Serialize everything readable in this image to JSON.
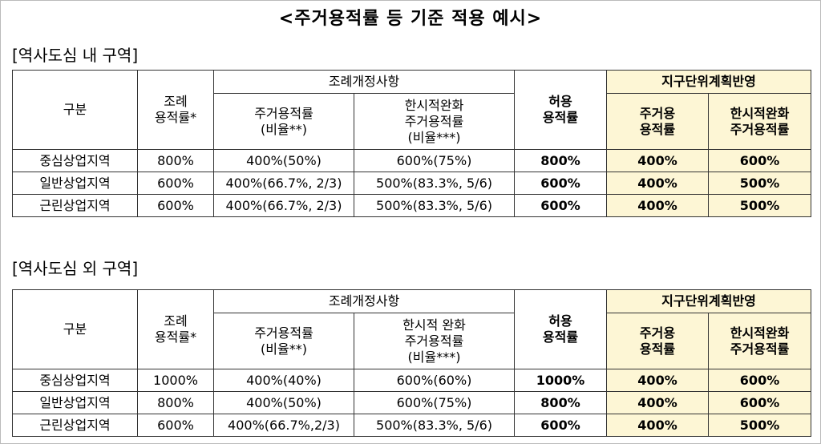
{
  "title": "<주거용적률 등 기준 적용 예시>",
  "sections": [
    {
      "label": "[역사도심 내 구역]",
      "group1": "조례개정사항",
      "group2": "지구단위계획반영",
      "columns": [
        [
          "구분"
        ],
        [
          "조례",
          "용적률*"
        ],
        [
          "주거용적률",
          "(비율**)"
        ],
        [
          "한시적완화",
          "주거용적률",
          "(비율***)"
        ],
        [
          "허용",
          "용적률"
        ],
        [
          "주거용",
          "용적률"
        ],
        [
          "한시적완화",
          "주거용적률"
        ]
      ],
      "rows": [
        [
          "중심상업지역",
          "800%",
          "400%(50%)",
          "600%(75%)",
          "800%",
          "400%",
          "600%"
        ],
        [
          "일반상업지역",
          "600%",
          "400%(66.7%, 2/3)",
          "500%(83.3%, 5/6)",
          "600%",
          "400%",
          "500%"
        ],
        [
          "근린상업지역",
          "600%",
          "400%(66.7%, 2/3)",
          "500%(83.3%, 5/6)",
          "600%",
          "400%",
          "500%"
        ]
      ]
    },
    {
      "label": "[역사도심 외 구역]",
      "group1": "조례개정사항",
      "group2": "지구단위계획반영",
      "columns": [
        [
          "구분"
        ],
        [
          "조례",
          "용적률*"
        ],
        [
          "주거용적률",
          "(비율**)"
        ],
        [
          "한시적 완화",
          "주거용적률",
          "(비율***)"
        ],
        [
          "허용",
          "용적률"
        ],
        [
          "주거용",
          "용적률"
        ],
        [
          "한시적완화",
          "주거용적률"
        ]
      ],
      "rows": [
        [
          "중심상업지역",
          "1000%",
          "400%(40%)",
          "600%(60%)",
          "1000%",
          "400%",
          "600%"
        ],
        [
          "일반상업지역",
          "800%",
          "400%(50%)",
          "600%(75%)",
          "800%",
          "400%",
          "600%"
        ],
        [
          "근린상업지역",
          "600%",
          "400%(66.7%,2/3)",
          "500%(83.3%, 5/6)",
          "600%",
          "400%",
          "500%"
        ]
      ]
    }
  ]
}
